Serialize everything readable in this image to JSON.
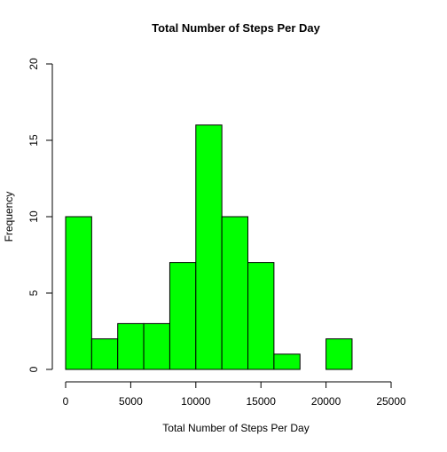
{
  "chart_data": {
    "type": "bar",
    "title": "Total Number of Steps Per Day",
    "xlabel": "Total Number of Steps Per Day",
    "ylabel": "Frequency",
    "bins": [
      {
        "from": 0,
        "to": 2000,
        "count": 10
      },
      {
        "from": 2000,
        "to": 4000,
        "count": 2
      },
      {
        "from": 4000,
        "to": 6000,
        "count": 3
      },
      {
        "from": 6000,
        "to": 8000,
        "count": 3
      },
      {
        "from": 8000,
        "to": 10000,
        "count": 7
      },
      {
        "from": 10000,
        "to": 12000,
        "count": 16
      },
      {
        "from": 12000,
        "to": 14000,
        "count": 10
      },
      {
        "from": 14000,
        "to": 16000,
        "count": 7
      },
      {
        "from": 16000,
        "to": 18000,
        "count": 1
      },
      {
        "from": 18000,
        "to": 20000,
        "count": 0
      },
      {
        "from": 20000,
        "to": 22000,
        "count": 2
      }
    ],
    "xlim": [
      0,
      25000
    ],
    "ylim": [
      0,
      20
    ],
    "xticks": [
      "0",
      "5000",
      "10000",
      "15000",
      "20000",
      "25000"
    ],
    "yticks": [
      "0",
      "5",
      "10",
      "15",
      "20"
    ],
    "bar_color": "#00ff00",
    "grid": false,
    "legend": "none"
  }
}
